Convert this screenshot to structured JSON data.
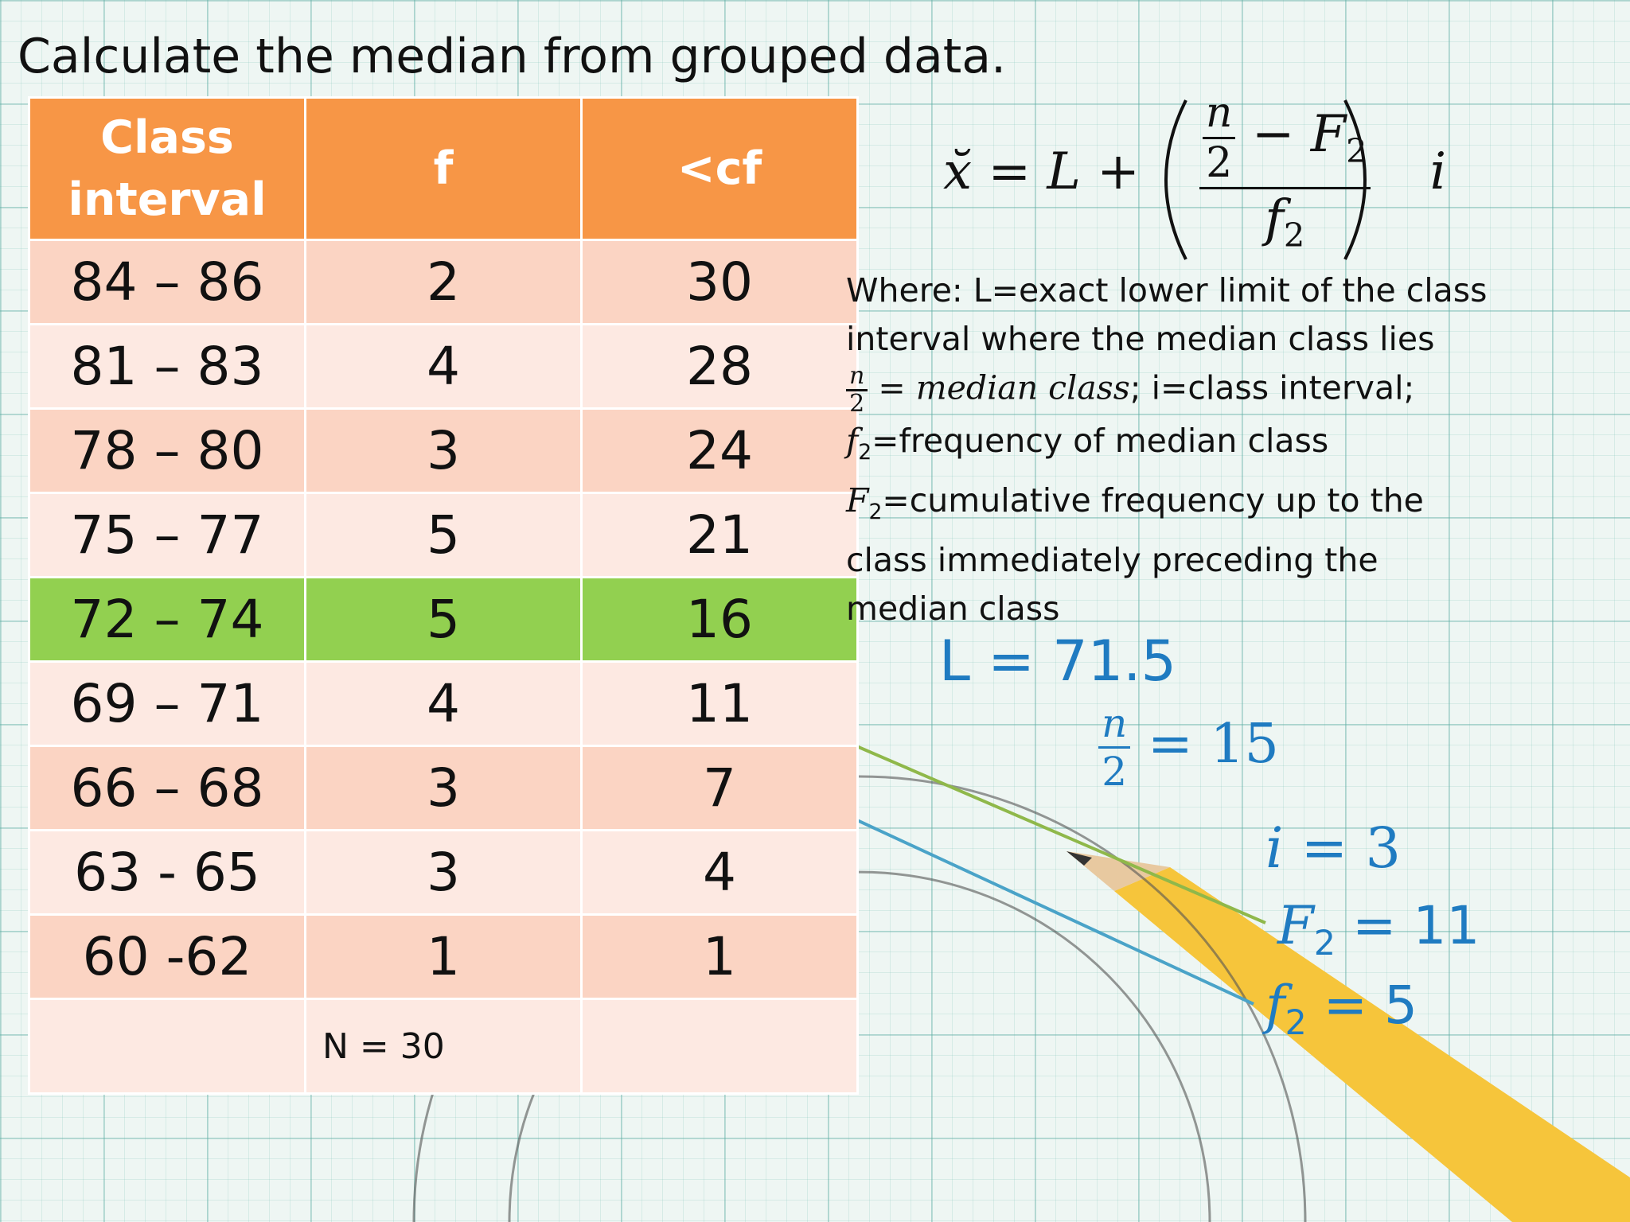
{
  "title": "Calculate the median from grouped data.",
  "table": {
    "header": [
      "Class interval",
      "f",
      "<cf"
    ],
    "rows": [
      [
        "84 – 86",
        "2",
        "30"
      ],
      [
        "81 – 83",
        "4",
        "28"
      ],
      [
        "78 – 80",
        "3",
        "24"
      ],
      [
        "75 – 77",
        "5",
        "21"
      ],
      [
        "72 – 74",
        "5",
        "16"
      ],
      [
        "69 – 71",
        "4",
        "11"
      ],
      [
        "66 – 68",
        "3",
        "7"
      ],
      [
        "63 - 65",
        "3",
        "4"
      ],
      [
        "60 -62",
        "1",
        "1"
      ]
    ],
    "highlighted_row": 4,
    "footer": {
      "f": "N = 30"
    }
  },
  "formula": {
    "lhs": "x̆",
    "eq": "= L +",
    "num_n": "n",
    "num_2": "2",
    "num_minus": "− F",
    "num_sub": "2",
    "den_f": "f",
    "den_sub": "2",
    "tail": "i"
  },
  "notes": {
    "where": "Where: L=exact lower limit of the class interval where the median class lies",
    "median": {
      "n": "n",
      "d": "2",
      "text": "= median class",
      "rest": "; i=class interval;"
    },
    "f2": {
      "sym": "f",
      "sub": "2",
      "text": "=frequency of median class"
    },
    "F2": {
      "sym": "F",
      "sub": "2",
      "text": "=cumulative frequency up to the class immediately preceding the median class"
    }
  },
  "annotations": {
    "L": "L = 71.5",
    "n_over_2": {
      "n": "n",
      "d": "2",
      "value": "= 15"
    },
    "i": {
      "sym": "i",
      "value": "= 3"
    },
    "F2": {
      "sym": "F",
      "sub": "2",
      "value": "= 11"
    },
    "f2": {
      "sym": "f",
      "sub": "2",
      "value": "= 5"
    }
  }
}
